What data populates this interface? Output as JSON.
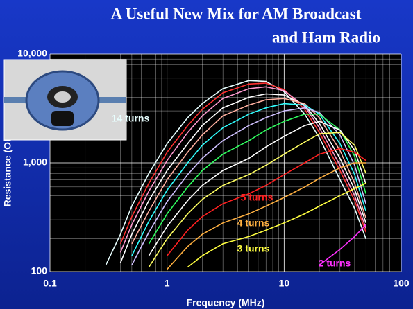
{
  "chart_data": {
    "type": "line",
    "title": [
      "A Useful New Mix for AM Broadcast",
      "and Ham Radio"
    ],
    "x_label": "Frequency  (MHz)",
    "y_label": "Resistance (Ohms)",
    "log_x": true,
    "log_y": true,
    "grid": true,
    "minor_grid": true,
    "xlim": [
      0.1,
      100
    ],
    "xticks": [
      0.1,
      1,
      10,
      100
    ],
    "ylim": [
      100,
      10000
    ],
    "yticks": [
      {
        "value": 100,
        "label": "100"
      },
      {
        "value": 1000,
        "label": "1,000"
      },
      {
        "value": 10000,
        "label": "10,000"
      }
    ],
    "x": [
      0.3,
      0.4,
      0.5,
      0.7,
      1,
      1.5,
      2,
      3,
      5,
      7,
      10,
      15,
      20,
      30,
      40,
      50
    ],
    "series": [
      {
        "name": "14 turns",
        "color": "#e8ffff",
        "values": [
          115,
          220,
          400,
          800,
          1500,
          2600,
          3500,
          4800,
          5700,
          5600,
          4500,
          2800,
          1700,
          700,
          380,
          200
        ]
      },
      {
        "color": "#ff3030",
        "values": [
          null,
          180,
          320,
          650,
          1250,
          2200,
          3100,
          4400,
          5300,
          5400,
          4700,
          3100,
          1900,
          850,
          450,
          230
        ]
      },
      {
        "color": "#ff9ad0",
        "values": [
          null,
          150,
          270,
          550,
          1050,
          1900,
          2700,
          3900,
          4800,
          5000,
          4600,
          3300,
          2100,
          950,
          500,
          250
        ]
      },
      {
        "color": "#ffffff",
        "values": [
          null,
          120,
          220,
          450,
          850,
          1500,
          2200,
          3200,
          4000,
          4300,
          4200,
          3400,
          2300,
          1100,
          570,
          280
        ]
      },
      {
        "color": "#ffb0a0",
        "values": [
          null,
          null,
          180,
          360,
          700,
          1250,
          1800,
          2700,
          3400,
          3800,
          3900,
          3500,
          2600,
          1300,
          650,
          310
        ]
      },
      {
        "color": "#30ffff",
        "values": [
          null,
          null,
          140,
          290,
          560,
          1000,
          1450,
          2100,
          2800,
          3200,
          3500,
          3400,
          2800,
          1500,
          780,
          360
        ]
      },
      {
        "color": "#d0c0ff",
        "values": [
          null,
          null,
          115,
          230,
          440,
          780,
          1100,
          1600,
          2200,
          2600,
          3000,
          3200,
          2900,
          1800,
          950,
          420
        ]
      },
      {
        "color": "#30ff60",
        "values": [
          null,
          null,
          null,
          180,
          340,
          600,
          850,
          1200,
          1600,
          2000,
          2400,
          2800,
          2800,
          2000,
          1150,
          520
        ]
      },
      {
        "color": "#ffffff",
        "values": [
          null,
          null,
          null,
          140,
          260,
          450,
          620,
          850,
          1100,
          1400,
          1750,
          2200,
          2400,
          2000,
          1300,
          640
        ]
      },
      {
        "color": "#ffff60",
        "values": [
          null,
          null,
          null,
          110,
          200,
          340,
          460,
          620,
          780,
          950,
          1200,
          1550,
          1850,
          1900,
          1450,
          800
        ]
      },
      {
        "name": "5 turns",
        "color": "#ff2020",
        "values": [
          null,
          null,
          null,
          null,
          140,
          240,
          320,
          420,
          520,
          620,
          780,
          1000,
          1200,
          1350,
          1250,
          1050
        ]
      },
      {
        "name": "4 turns",
        "color": "#ffb040",
        "values": [
          null,
          null,
          null,
          null,
          105,
          170,
          220,
          280,
          340,
          400,
          480,
          600,
          720,
          900,
          1000,
          1000
        ]
      },
      {
        "name": "3 turns",
        "color": "#ffff40",
        "values": [
          null,
          null,
          null,
          null,
          null,
          110,
          140,
          180,
          210,
          240,
          280,
          340,
          400,
          500,
          580,
          650
        ]
      },
      {
        "name": "2 turns",
        "color": "#ff30ff",
        "values": [
          null,
          null,
          null,
          null,
          null,
          null,
          null,
          null,
          null,
          null,
          null,
          null,
          115,
          160,
          210,
          270
        ]
      }
    ]
  }
}
